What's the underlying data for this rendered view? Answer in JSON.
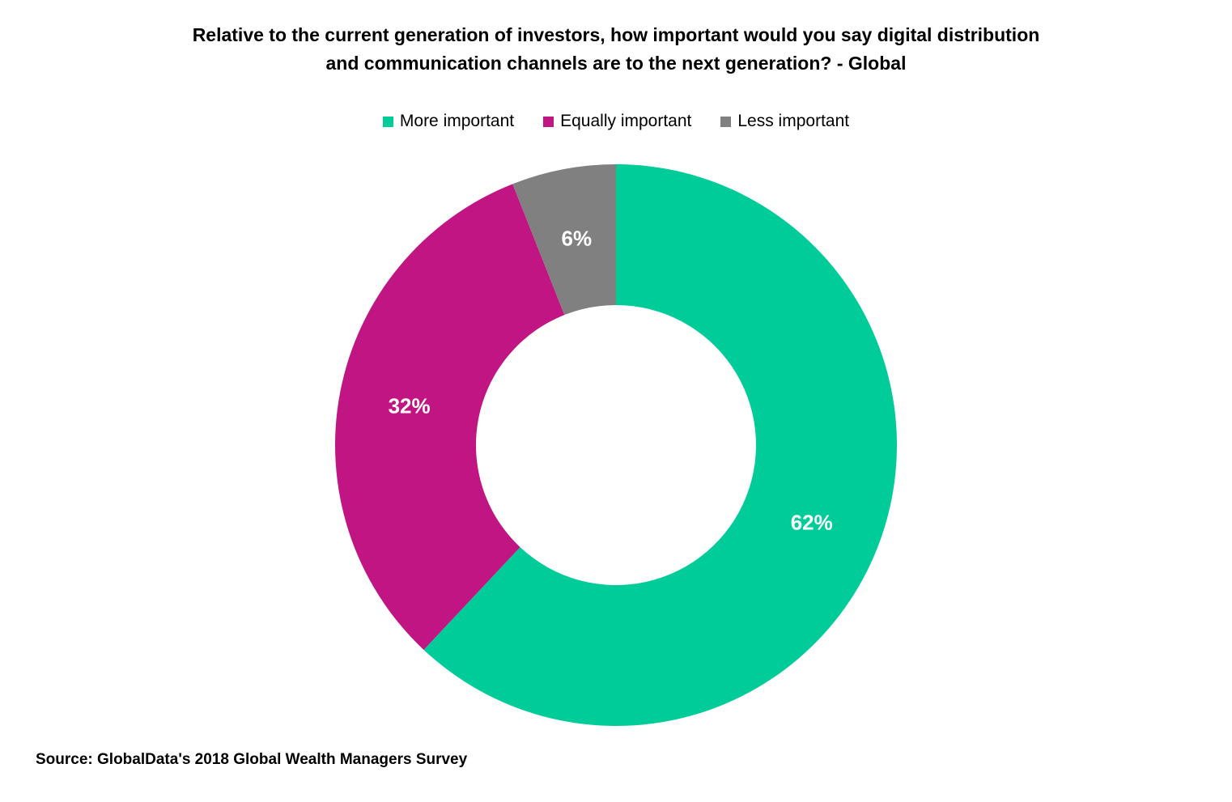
{
  "chart_data": {
    "type": "pie",
    "variant": "donut",
    "title": "Relative to the current generation of investors, how important would you say digital distribution and communication channels are to the next generation? - Global",
    "title_lines": [
      "Relative to the current generation of investors, how important would you say digital distribution",
      "and communication channels are to the next generation? - Global"
    ],
    "legend_position": "top",
    "slices": [
      {
        "name": "More important",
        "value": 62,
        "label": "62%",
        "color": "#00CC99"
      },
      {
        "name": "Equally important",
        "value": 32,
        "label": "32%",
        "color": "#C01582"
      },
      {
        "name": "Less important",
        "value": 6,
        "label": "6%",
        "color": "#808080"
      }
    ],
    "source": "Source: GlobalData's 2018 Global Wealth Managers Survey"
  }
}
